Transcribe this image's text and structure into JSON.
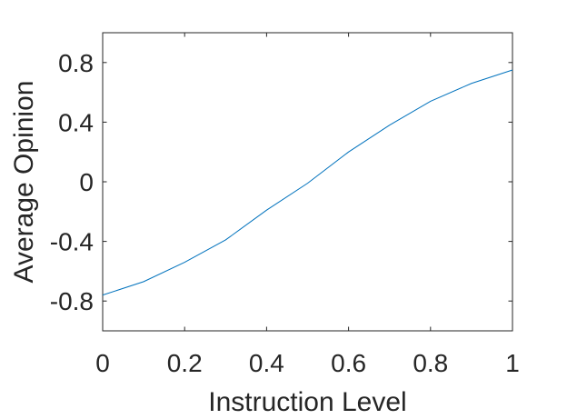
{
  "chart_data": {
    "type": "line",
    "title": "",
    "xlabel": "Instruction Level",
    "ylabel": "Average Opinion",
    "xlim": [
      0,
      1
    ],
    "ylim": [
      -1,
      1
    ],
    "xticks": [
      0,
      0.2,
      0.4,
      0.6,
      0.8,
      1
    ],
    "xtick_labels": [
      "0",
      "0.2",
      "0.4",
      "0.6",
      "0.8",
      "1"
    ],
    "yticks": [
      -0.8,
      -0.4,
      0,
      0.4,
      0.8
    ],
    "ytick_labels": [
      "-0.8",
      "-0.4",
      "0",
      "0.4",
      "0.8"
    ],
    "grid": false,
    "legend": false,
    "series": [
      {
        "color": "#0072BD",
        "x": [
          0,
          0.1,
          0.2,
          0.3,
          0.4,
          0.5,
          0.6,
          0.7,
          0.8,
          0.9,
          1.0
        ],
        "y": [
          -0.76,
          -0.67,
          -0.54,
          -0.39,
          -0.19,
          -0.01,
          0.2,
          0.38,
          0.54,
          0.66,
          0.75
        ]
      }
    ]
  }
}
